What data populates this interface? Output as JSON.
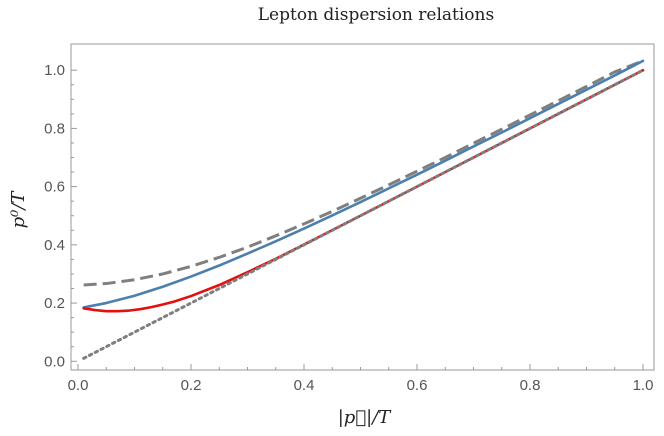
{
  "chart_data": {
    "type": "line",
    "title": "Lepton dispersion relations",
    "xlabel": "|p⃗|/T",
    "ylabel": "p⁰/T",
    "xlim": [
      0,
      1
    ],
    "ylim": [
      -0.03,
      1.09
    ],
    "xticks": [
      0.0,
      0.2,
      0.4,
      0.6,
      0.8,
      1.0
    ],
    "xtick_labels": [
      "0.0",
      "0.2",
      "0.4",
      "0.6",
      "0.8",
      "1.0"
    ],
    "yticks": [
      0.0,
      0.2,
      0.4,
      0.6,
      0.8,
      1.0
    ],
    "ytick_labels": [
      "0.0",
      "0.2",
      "0.4",
      "0.6",
      "0.8",
      "1.0"
    ],
    "grid": false,
    "legend": "none",
    "series": [
      {
        "style": "dashed",
        "color": "#7f7f7f",
        "x": [
          0.01,
          0.05,
          0.1,
          0.15,
          0.2,
          0.25,
          0.3,
          0.35,
          0.4,
          0.45,
          0.5,
          0.55,
          0.6,
          0.65,
          0.7,
          0.75,
          0.8,
          0.85,
          0.9,
          0.95,
          1.0
        ],
        "y": [
          0.262,
          0.267,
          0.28,
          0.3,
          0.326,
          0.357,
          0.392,
          0.431,
          0.472,
          0.515,
          0.56,
          0.606,
          0.653,
          0.7,
          0.749,
          0.797,
          0.846,
          0.895,
          0.944,
          0.994,
          1.032
        ]
      },
      {
        "style": "solid",
        "color": "#4a7fae",
        "x": [
          0.01,
          0.05,
          0.1,
          0.15,
          0.2,
          0.25,
          0.3,
          0.35,
          0.4,
          0.45,
          0.5,
          0.55,
          0.6,
          0.65,
          0.7,
          0.75,
          0.8,
          0.85,
          0.9,
          0.95,
          1.0
        ],
        "y": [
          0.185,
          0.2,
          0.225,
          0.256,
          0.291,
          0.329,
          0.37,
          0.412,
          0.456,
          0.501,
          0.547,
          0.594,
          0.641,
          0.689,
          0.738,
          0.786,
          0.835,
          0.884,
          0.933,
          0.982,
          1.032
        ]
      },
      {
        "style": "solid",
        "color": "#e31010",
        "x": [
          0.01,
          0.03,
          0.05,
          0.07,
          0.09,
          0.11,
          0.13,
          0.15,
          0.17,
          0.2,
          0.25,
          0.3,
          0.35,
          0.4,
          0.5,
          0.6,
          0.7,
          0.8,
          0.9,
          1.0
        ],
        "y": [
          0.182,
          0.176,
          0.172,
          0.172,
          0.174,
          0.179,
          0.186,
          0.195,
          0.205,
          0.224,
          0.262,
          0.306,
          0.352,
          0.401,
          0.5,
          0.6,
          0.7,
          0.8,
          0.9,
          1.0
        ]
      },
      {
        "style": "dotted",
        "color": "#7f7f7f",
        "x": [
          0.01,
          1.0
        ],
        "y": [
          0.01,
          1.0
        ]
      }
    ]
  }
}
